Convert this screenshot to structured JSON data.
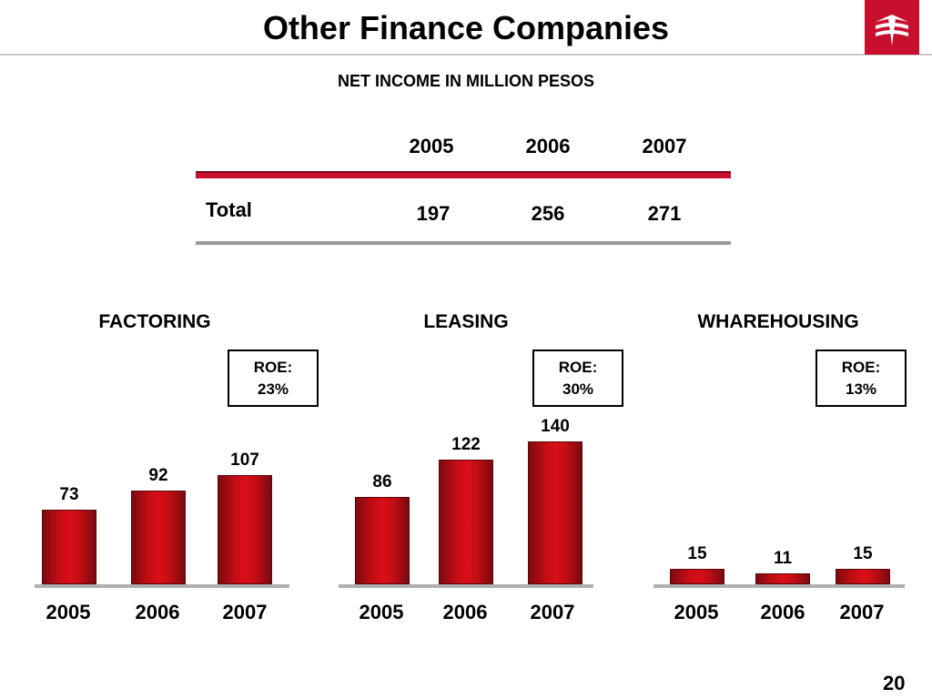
{
  "title": "Other Finance Companies",
  "subtitle": "NET INCOME IN MILLION PESOS",
  "brand_color": "#c8102e",
  "logo": {
    "icon": "bank-logo-icon"
  },
  "summary_table": {
    "years": [
      "2005",
      "2006",
      "2007"
    ],
    "rows": [
      {
        "label": "Total",
        "values": [
          "197",
          "256",
          "271"
        ]
      }
    ]
  },
  "page_number": "20",
  "chart_data": [
    {
      "type": "bar",
      "title": "FACTORING",
      "roe_label": "ROE:",
      "roe_value": "23%",
      "categories": [
        "2005",
        "2006",
        "2007"
      ],
      "values": [
        73,
        92,
        107
      ],
      "ylim": [
        0,
        160
      ],
      "grid": false
    },
    {
      "type": "bar",
      "title": "LEASING",
      "roe_label": "ROE:",
      "roe_value": "30%",
      "categories": [
        "2005",
        "2006",
        "2007"
      ],
      "values": [
        86,
        122,
        140
      ],
      "ylim": [
        0,
        160
      ],
      "grid": false
    },
    {
      "type": "bar",
      "title": "WHAREHOUSING",
      "roe_label": "ROE:",
      "roe_value": "13%",
      "categories": [
        "2005",
        "2006",
        "2007"
      ],
      "values": [
        15,
        11,
        15
      ],
      "ylim": [
        0,
        160
      ],
      "grid": false
    }
  ]
}
